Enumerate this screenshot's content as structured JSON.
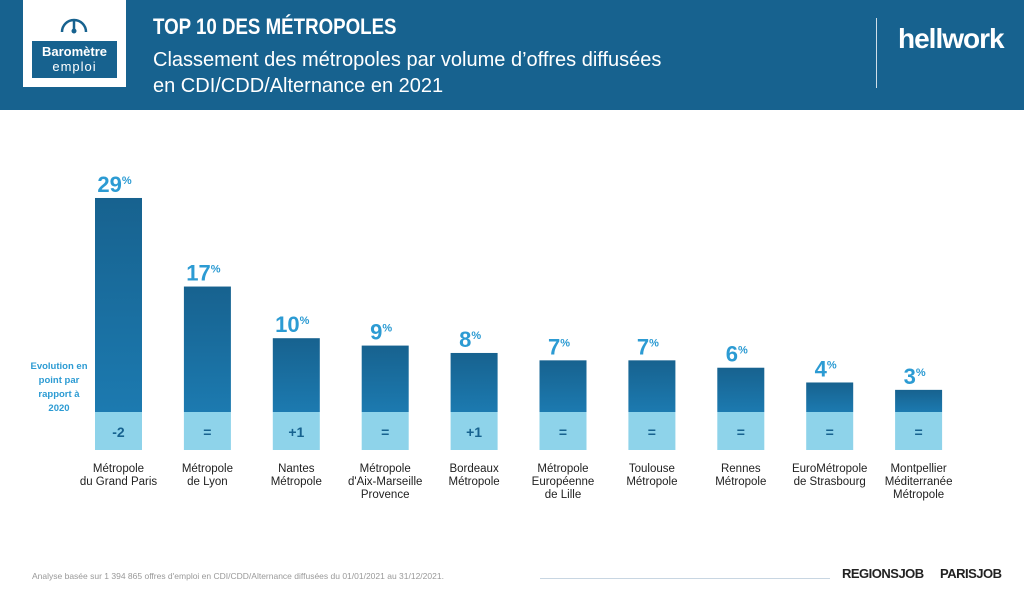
{
  "header": {
    "logo_line1": "Baromètre",
    "logo_line2": "emploi",
    "title": "TOP 10 DES MÉTROPOLES",
    "subtitle_line1": "Classement des métropoles par volume d’offres diffusées",
    "subtitle_line2": "en CDI/CDD/Alternance en 2021",
    "brand": "hellwork"
  },
  "legend": {
    "evolution_label": "Evolution en point par rapport à 2020"
  },
  "footer": {
    "note": "Analyse basée sur 1 394 865 offres d'emploi en CDI/CDD/Alternance diffusées du 01/01/2021 au 31/12/2021.",
    "brand1": "REGIONSJOB",
    "brand2": "PARISJOB"
  },
  "colors": {
    "header": "#17628f",
    "bar_top": "#17628f",
    "bar_bottom": "#1c7ab0",
    "change_box": "#8ed3ea",
    "value": "#2c9bd3"
  },
  "chart_data": {
    "type": "bar",
    "title": "TOP 10 DES MÉTROPOLES",
    "categories": [
      [
        "Métropole",
        "du Grand Paris"
      ],
      [
        "Métropole",
        "de Lyon"
      ],
      [
        "Nantes",
        "Métropole"
      ],
      [
        "Métropole",
        "d'Aix-Marseille",
        "Provence"
      ],
      [
        "Bordeaux",
        "Métropole"
      ],
      [
        "Métropole",
        "Européenne",
        "de Lille"
      ],
      [
        "Toulouse",
        "Métropole"
      ],
      [
        "Rennes",
        "Métropole"
      ],
      [
        "EuroMétropole",
        "de Strasbourg"
      ],
      [
        "Montpellier",
        "Méditerranée",
        "Métropole"
      ]
    ],
    "values": [
      29,
      17,
      10,
      9,
      8,
      7,
      7,
      6,
      4,
      3
    ],
    "unit": "%",
    "changes": [
      "-2",
      "=",
      "+1",
      "=",
      "+1",
      "=",
      "=",
      "=",
      "=",
      "="
    ],
    "ylim": [
      0,
      30
    ]
  }
}
